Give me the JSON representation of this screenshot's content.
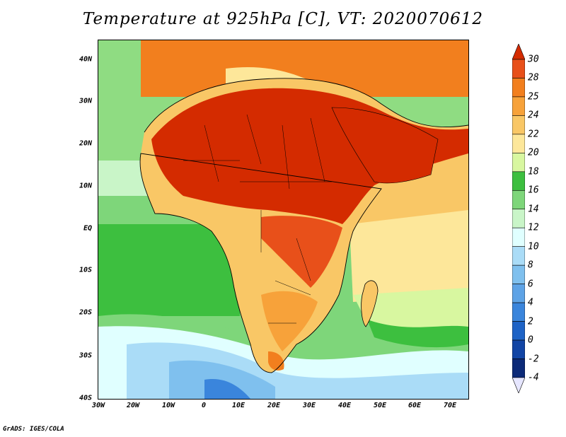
{
  "title": "Temperature at 925hPa [C], VT: 2020070612",
  "footer": "GrADS: IGES/COLA",
  "axes": {
    "lat_labels": [
      "40N",
      "30N",
      "20N",
      "10N",
      "EQ",
      "10S",
      "20S",
      "30S",
      "40S"
    ],
    "lon_labels": [
      "30W",
      "20W",
      "10W",
      "0",
      "10E",
      "20E",
      "30E",
      "40E",
      "50E",
      "60E",
      "70E"
    ]
  },
  "colorbar": {
    "labels": [
      "30",
      "28",
      "25",
      "24",
      "22",
      "20",
      "18",
      "16",
      "14",
      "12",
      "10",
      "8",
      "6",
      "4",
      "2",
      "0",
      "-2",
      "-4"
    ],
    "colors": {
      "30": "#d42b00",
      "28": "#e8501a",
      "25": "#f27f1e",
      "24": "#f7a23a",
      "22": "#f9c766",
      "20": "#fde79a",
      "18": "#d8f7a0",
      "16": "#3dbf3f",
      "14": "#7ed67a",
      "12": "#c9f5c8",
      "10": "#e0ffff",
      "8": "#aadcf7",
      "6": "#7fc0ee",
      "4": "#5ea3e6",
      "2": "#3a85dc",
      "0": "#1e63c6",
      "-2": "#1245a5",
      "-4": "#0c2a78"
    }
  }
}
